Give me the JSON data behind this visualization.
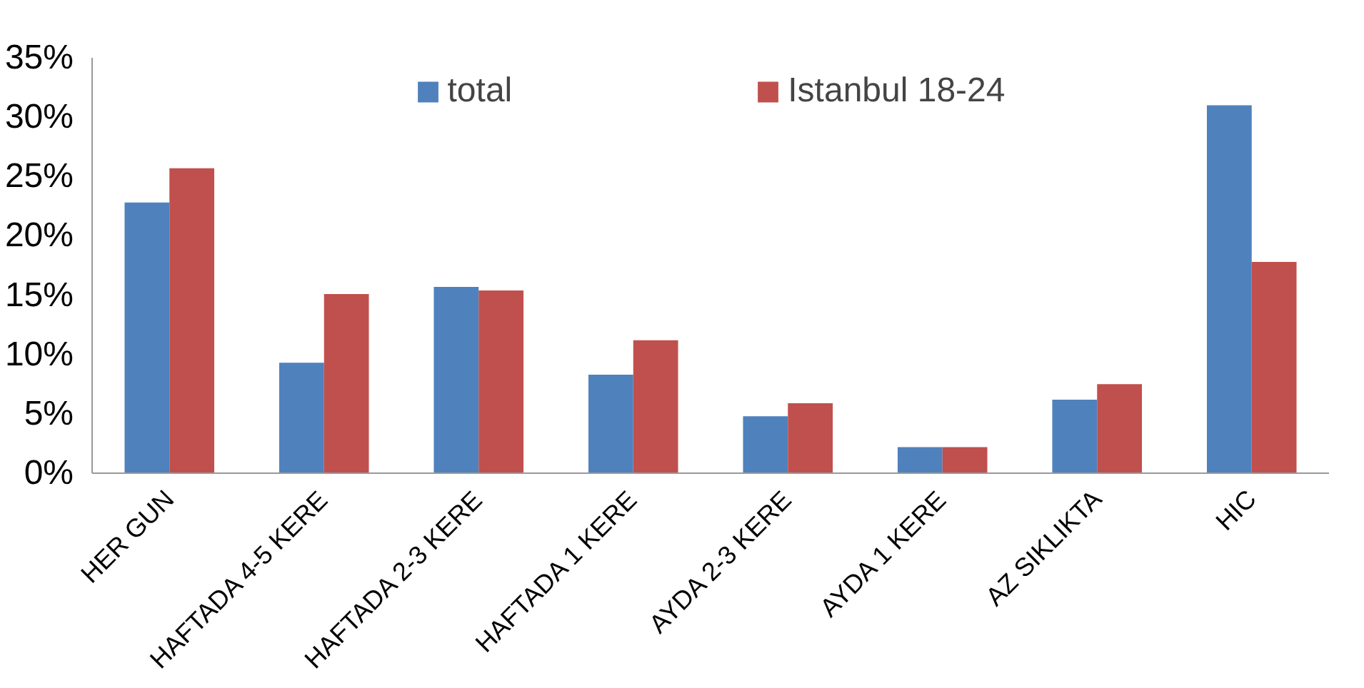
{
  "chart_data": {
    "type": "bar",
    "categories": [
      "HER GUN",
      "HAFTADA 4-5 KERE",
      "HAFTADA 2-3 KERE",
      "HAFTADA 1 KERE",
      "AYDA 2-3 KERE",
      "AYDA 1 KERE",
      "AZ SIKLIKTA",
      "HIC"
    ],
    "series": [
      {
        "name": "total",
        "color": "#4f81bd",
        "values": [
          22.8,
          9.3,
          15.7,
          8.3,
          4.8,
          2.2,
          6.2,
          31.0
        ]
      },
      {
        "name": "Istanbul 18-24",
        "color": "#c0504d",
        "values": [
          25.7,
          15.1,
          15.4,
          11.2,
          5.9,
          2.2,
          7.5,
          17.8
        ]
      }
    ],
    "ylim": [
      0,
      35
    ],
    "yticks": [
      {
        "value": 0,
        "label": "0%"
      },
      {
        "value": 5,
        "label": "5%"
      },
      {
        "value": 10,
        "label": "10%"
      },
      {
        "value": 15,
        "label": "15%"
      },
      {
        "value": 20,
        "label": "20%"
      },
      {
        "value": 25,
        "label": "25%"
      },
      {
        "value": 30,
        "label": "30%"
      },
      {
        "value": 35,
        "label": "35%"
      }
    ],
    "grid": false,
    "legend": "top"
  }
}
